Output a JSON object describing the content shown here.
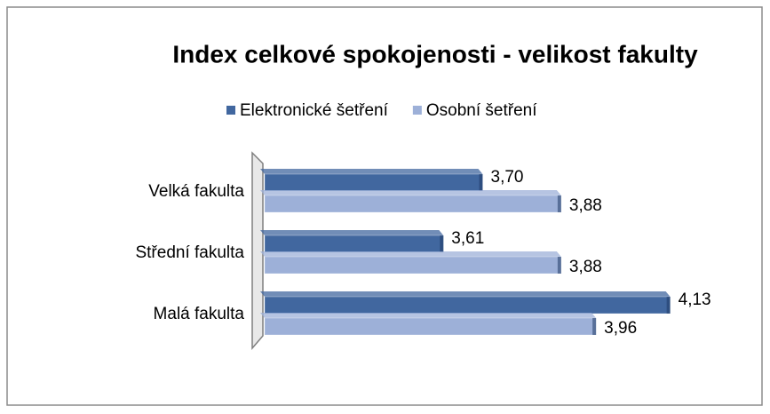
{
  "chart_data": {
    "type": "bar",
    "orientation": "horizontal",
    "title": "Index celkové spokojenosti - velikost fakulty",
    "categories": [
      "Velká fakulta",
      "Střední fakulta",
      "Malá fakulta"
    ],
    "series": [
      {
        "name": "Elektronické šetření",
        "color": "#41679f",
        "values": [
          3.7,
          3.61,
          4.13
        ],
        "value_labels": [
          "3,70",
          "3,61",
          "4,13"
        ]
      },
      {
        "name": "Osobní šetření",
        "color": "#9db0d8",
        "values": [
          3.88,
          3.88,
          3.96
        ],
        "value_labels": [
          "3,88",
          "3,88",
          "3,96"
        ]
      }
    ],
    "xlim": [
      3.2,
      4.2
    ]
  }
}
